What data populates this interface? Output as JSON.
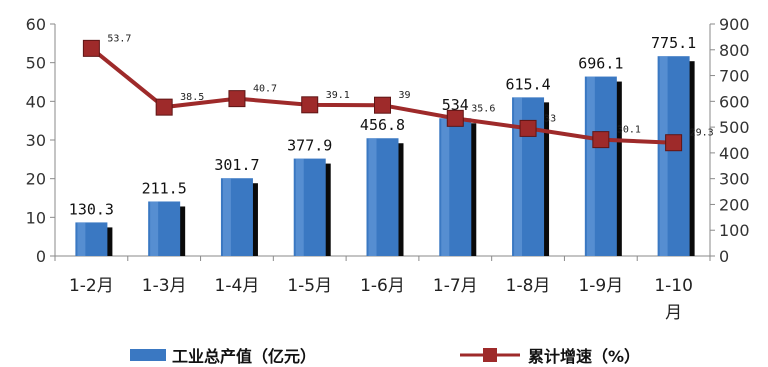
{
  "chart_data": {
    "type": "bar",
    "categories": [
      "1-2月",
      "1-3月",
      "1-4月",
      "1-5月",
      "1-6月",
      "1-7月",
      "1-8月",
      "1-9月",
      "1-10月"
    ],
    "series": [
      {
        "name": "工业总产值（亿元）",
        "type": "bar",
        "axis": "right",
        "values": [
          130.3,
          211.5,
          301.7,
          377.9,
          456.8,
          534.4,
          615.4,
          696.1,
          775.1
        ],
        "labels": [
          "130.3",
          "211.5",
          "301.7",
          "377.9",
          "456.8",
          "534",
          "615.4",
          "696.1",
          "775.1"
        ],
        "color": "#3a78c2"
      },
      {
        "name": "累计增速（%）",
        "type": "line",
        "axis": "left",
        "values": [
          53.7,
          38.5,
          40.7,
          39.1,
          39,
          35.6,
          33,
          30.1,
          29.3
        ],
        "labels": [
          "53.7",
          "38.5",
          "40.7",
          "39.1",
          "39",
          "35.6",
          "33",
          "30.1",
          "29.3"
        ],
        "color": "#9e2a2a"
      }
    ],
    "left_axis": {
      "min": 0,
      "max": 60,
      "ticks": [
        "0",
        "10",
        "20",
        "30",
        "40",
        "50",
        "60"
      ]
    },
    "right_axis": {
      "min": 0,
      "max": 900,
      "ticks": [
        "0",
        "100",
        "200",
        "300",
        "400",
        "500",
        "600",
        "700",
        "800",
        "900"
      ]
    },
    "grid": false,
    "legend": "bottom",
    "title": "",
    "xlabel": "",
    "ylabel": ""
  }
}
